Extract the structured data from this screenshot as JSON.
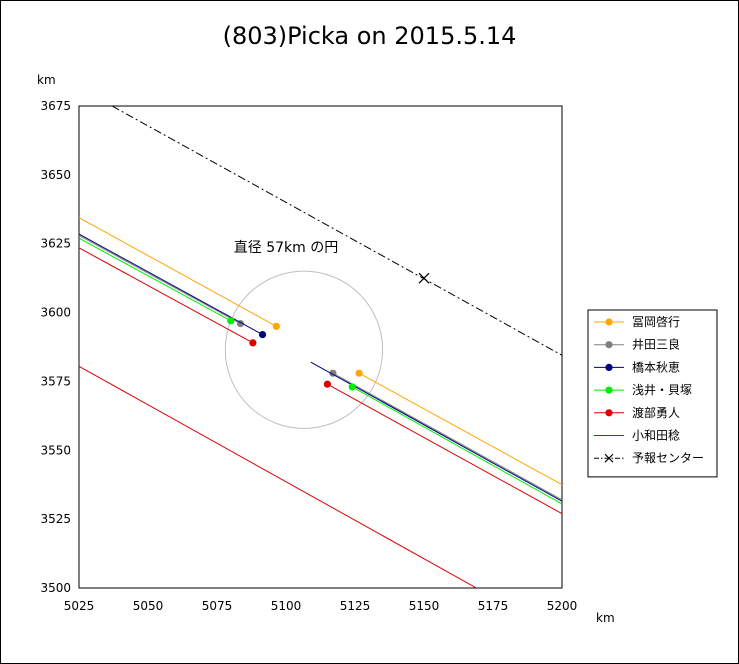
{
  "chart_data": {
    "type": "line",
    "title": "(803)Picka on 2015.5.14",
    "xlabel": "km",
    "ylabel": "km",
    "xlim": [
      5025,
      5200
    ],
    "ylim": [
      3500,
      3675
    ],
    "xticks": [
      "5025",
      "5050",
      "5075",
      "5100",
      "5125",
      "5150",
      "5175",
      "5200"
    ],
    "yticks": [
      "3500",
      "3525",
      "3550",
      "3575",
      "3600",
      "3625",
      "3650",
      "3675"
    ],
    "grid": false,
    "legend_position": "right",
    "annotation": {
      "text": "直径 57km の円",
      "circle_center": [
        5106.5,
        3586.5
      ],
      "circle_radius_km": 28.5,
      "text_position": [
        5100,
        3622
      ]
    },
    "series": [
      {
        "name": "冨岡啓行",
        "color": "#ffa500",
        "segments": [
          {
            "from": [
              5025,
              3634.5
            ],
            "to": [
              5096.5,
              3595
            ]
          },
          {
            "from": [
              5126.5,
              3578
            ],
            "to": [
              5200,
              3537.5
            ]
          }
        ],
        "points": [
          [
            5096.5,
            3595
          ],
          [
            5126.5,
            3578
          ]
        ]
      },
      {
        "name": "井田三良",
        "color": "#808080",
        "segments": [
          {
            "from": [
              5025,
              3628
            ],
            "to": [
              5083.5,
              3596
            ]
          },
          {
            "from": [
              5117,
              3578
            ],
            "to": [
              5200,
              3532
            ]
          }
        ],
        "points": [
          [
            5083.5,
            3596
          ],
          [
            5117,
            3578
          ]
        ]
      },
      {
        "name": "橋本秋恵",
        "color": "#000080",
        "segments": [
          {
            "from": [
              5025,
              3628.5
            ],
            "to": [
              5091.5,
              3592
            ]
          },
          {
            "from": [
              5109,
              3582
            ],
            "to": [
              5200,
              3531.5
            ]
          }
        ],
        "points": [
          [
            5091.5,
            3592
          ]
        ]
      },
      {
        "name": "浅井・貝塚",
        "color": "#00ee00",
        "segments": [
          {
            "from": [
              5025,
              3627
            ],
            "to": [
              5080,
              3597
            ]
          },
          {
            "from": [
              5124,
              3573
            ],
            "to": [
              5200,
              3530.5
            ]
          }
        ],
        "points": [
          [
            5080,
            3597
          ],
          [
            5124,
            3573
          ]
        ]
      },
      {
        "name": "渡部勇人",
        "color": "#dd0000",
        "segments": [
          {
            "from": [
              5025,
              3623.5
            ],
            "to": [
              5088,
              3589
            ]
          },
          {
            "from": [
              5115,
              3574
            ],
            "to": [
              5200,
              3527
            ]
          }
        ],
        "points": [
          [
            5088,
            3589
          ],
          [
            5115,
            3574
          ]
        ]
      },
      {
        "name": "小和田稔",
        "color": "#dd0000",
        "segments": [
          {
            "from": [
              5025,
              3580.5
            ],
            "to": [
              5169,
              3500
            ]
          }
        ],
        "points": []
      },
      {
        "name": "予報センター",
        "color": "#000000",
        "dashed": true,
        "segments": [
          {
            "from": [
              5037,
              3675
            ],
            "to": [
              5200,
              3584.5
            ]
          }
        ],
        "points": [],
        "marker_x": [
          5150,
          3612.5
        ]
      }
    ]
  }
}
